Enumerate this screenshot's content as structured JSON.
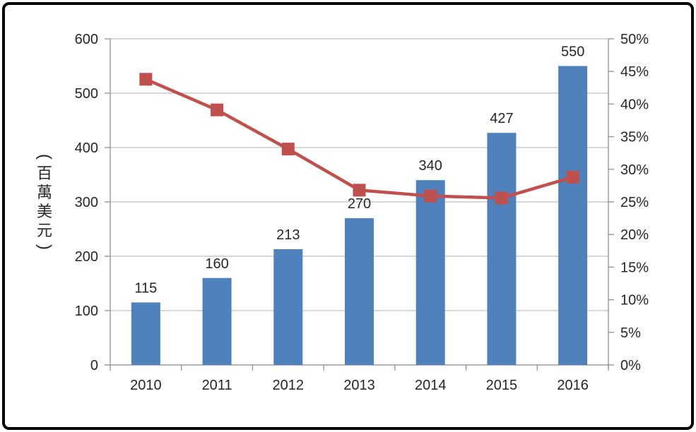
{
  "chart_data": {
    "type": "combo",
    "categories": [
      "2010",
      "2011",
      "2012",
      "2013",
      "2014",
      "2015",
      "2016"
    ],
    "series": [
      {
        "name": "amount-bars",
        "type": "bar",
        "axis": "left",
        "color": "#4F81BD",
        "values": [
          115,
          160,
          213,
          270,
          340,
          427,
          550
        ],
        "data_labels": [
          "115",
          "160",
          "213",
          "270",
          "340",
          "427",
          "550"
        ]
      },
      {
        "name": "growth-rate-line",
        "type": "line",
        "axis": "right",
        "color": "#C0504D",
        "marker": "square",
        "values": [
          43.8,
          39.1,
          33.1,
          26.8,
          25.9,
          25.6,
          28.8
        ]
      }
    ],
    "left_axis": {
      "title": "(百萬美元)",
      "min": 0,
      "max": 600,
      "step": 100,
      "tick_labels": [
        "600",
        "500",
        "400",
        "300",
        "200",
        "100",
        "0"
      ]
    },
    "right_axis": {
      "min": 0,
      "max": 50,
      "step": 5,
      "tick_labels": [
        "50%",
        "45%",
        "40%",
        "35%",
        "30%",
        "25%",
        "20%",
        "15%",
        "10%",
        "5%",
        "0%"
      ]
    },
    "grid": {
      "horizontal": true,
      "color": "#BFBFBF"
    },
    "axis_color": "#909090",
    "text_color": "#262626",
    "legend": "none",
    "frame_border_color": "#000000",
    "background_color": "#FFFFFF"
  }
}
